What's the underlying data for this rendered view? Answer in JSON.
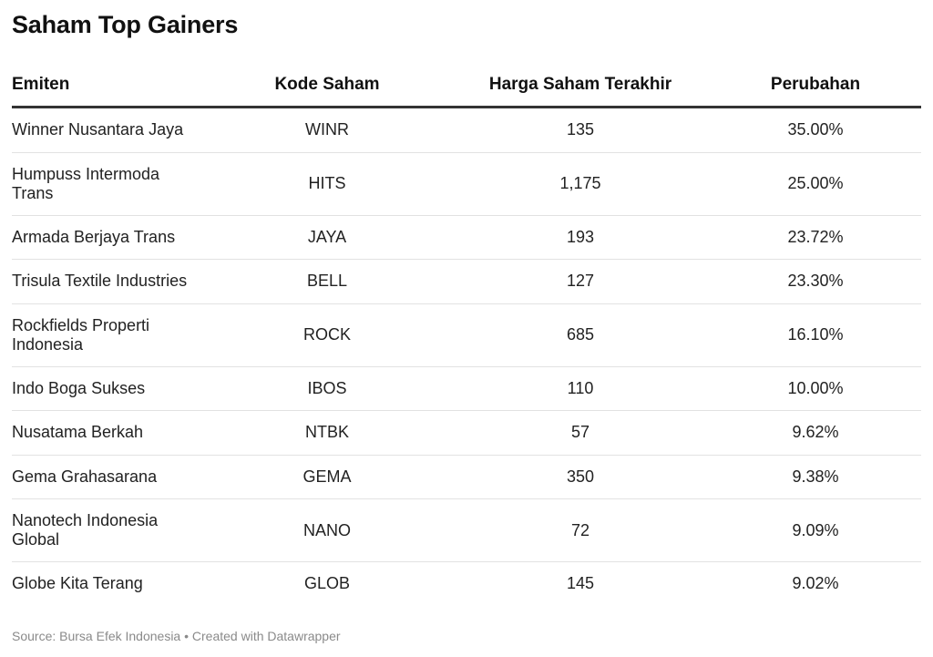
{
  "title": "Saham Top Gainers",
  "chart_data": {
    "type": "table",
    "title": "Saham Top Gainers",
    "columns": [
      "Emiten",
      "Kode Saham",
      "Harga Saham Terakhir",
      "Perubahan"
    ],
    "rows": [
      {
        "name": "Winner Nusantara Jaya",
        "code": "WINR",
        "price": "135",
        "change": "35.00%",
        "wrap": false
      },
      {
        "name": "Humpuss Intermoda Trans",
        "code": "HITS",
        "price": "1,175",
        "change": "25.00%",
        "wrap": true
      },
      {
        "name": "Armada Berjaya Trans",
        "code": "JAYA",
        "price": "193",
        "change": "23.72%",
        "wrap": false
      },
      {
        "name": "Trisula Textile Industries",
        "code": "BELL",
        "price": "127",
        "change": "23.30%",
        "wrap": false
      },
      {
        "name": "Rockfields Properti Indonesia",
        "code": "ROCK",
        "price": "685",
        "change": "16.10%",
        "wrap": true
      },
      {
        "name": "Indo Boga Sukses",
        "code": "IBOS",
        "price": "110",
        "change": "10.00%",
        "wrap": false
      },
      {
        "name": "Nusatama Berkah",
        "code": "NTBK",
        "price": "57",
        "change": "9.62%",
        "wrap": false
      },
      {
        "name": "Gema Grahasarana",
        "code": "GEMA",
        "price": "350",
        "change": "9.38%",
        "wrap": false
      },
      {
        "name": "Nanotech Indonesia Global",
        "code": "NANO",
        "price": "72",
        "change": "9.09%",
        "wrap": true
      },
      {
        "name": "Globe Kita Terang",
        "code": "GLOB",
        "price": "145",
        "change": "9.02%",
        "wrap": false
      }
    ]
  },
  "footer": "Source: Bursa Efek Indonesia • Created with Datawrapper"
}
